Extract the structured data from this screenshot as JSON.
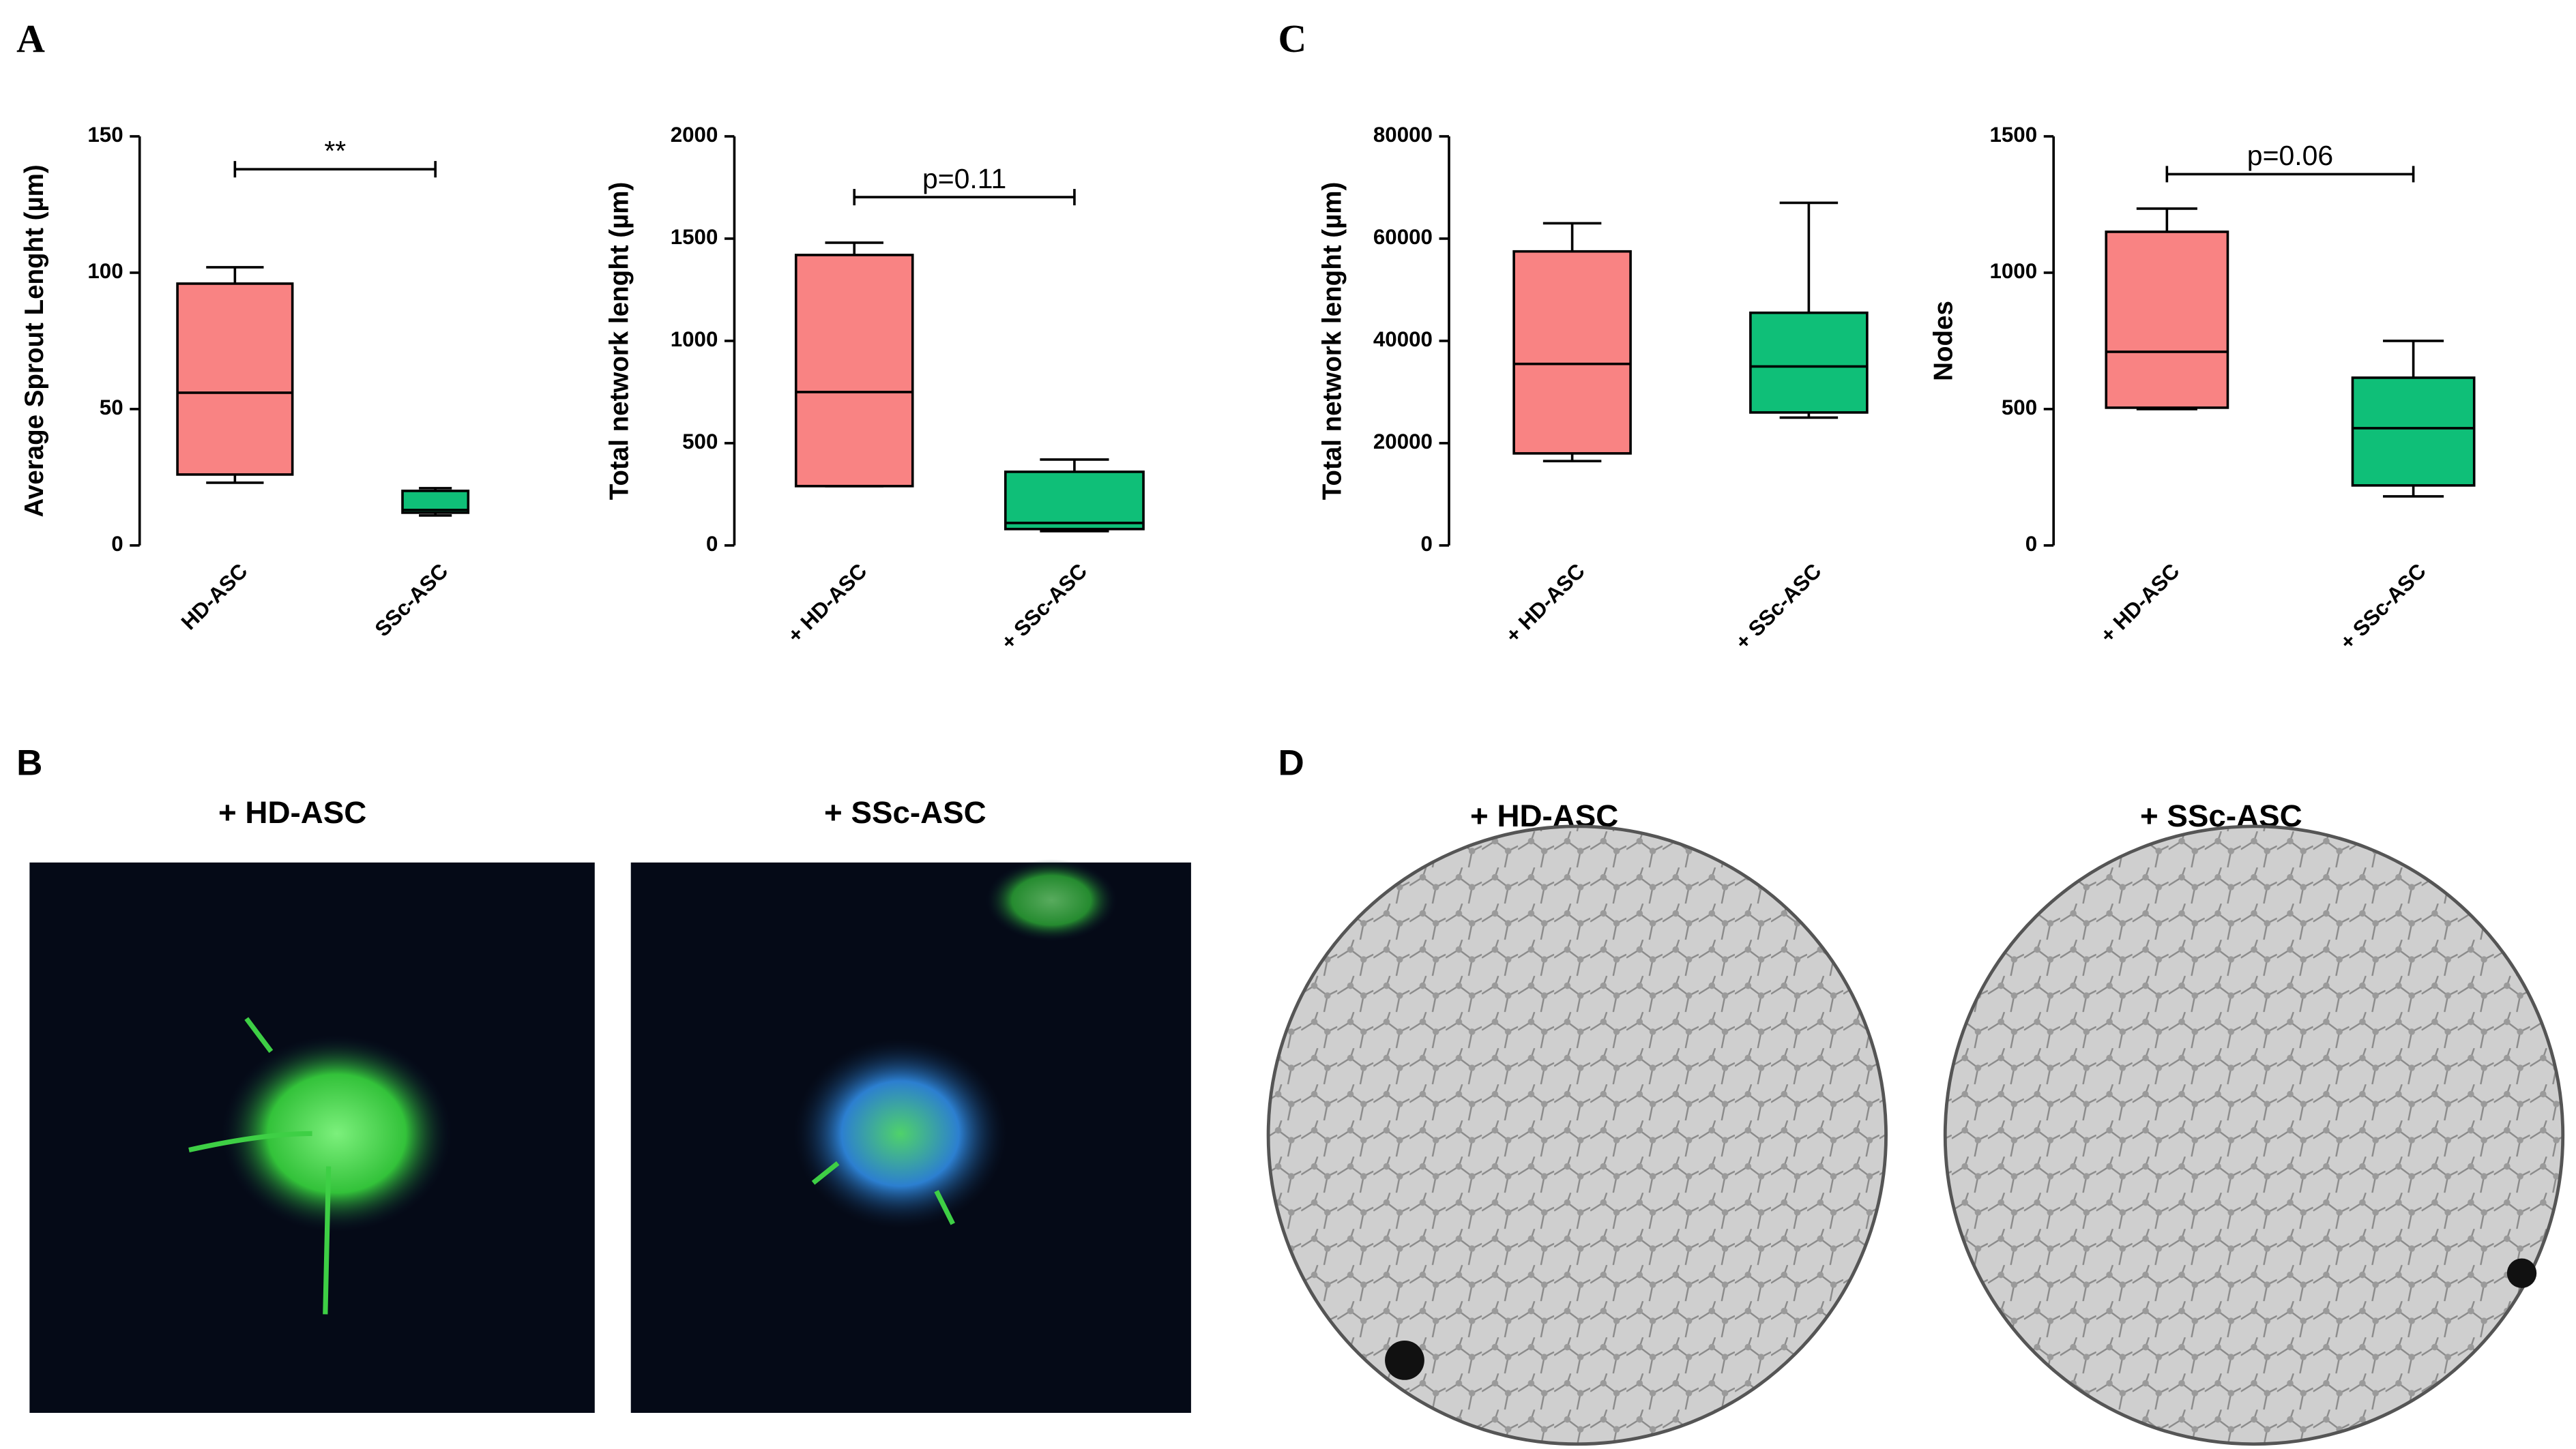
{
  "chart_data": [
    {
      "type": "box",
      "y_label": "Average Sprout Lenght (µm)",
      "categories": [
        "HD-ASC",
        "SSc-ASC"
      ],
      "boxes": [
        {
          "min": 23,
          "q1": 26,
          "median": 56,
          "q3": 96,
          "max": 102,
          "color": "#f98383"
        },
        {
          "min": 11,
          "q1": 12,
          "median": 13,
          "q3": 20,
          "max": 21,
          "color": "#0fbf78"
        }
      ],
      "ylim": [
        0,
        150
      ],
      "yticks": [
        0,
        50,
        100,
        150
      ],
      "annotation": "**"
    },
    {
      "type": "box",
      "y_label": "Total network lenght (µm)",
      "categories": [
        "+ HD-ASC",
        "+ SSc-ASC"
      ],
      "boxes": [
        {
          "min": 290,
          "q1": 290,
          "median": 750,
          "q3": 1420,
          "max": 1480,
          "color": "#f98383"
        },
        {
          "min": 70,
          "q1": 80,
          "median": 110,
          "q3": 360,
          "max": 420,
          "color": "#0fbf78"
        }
      ],
      "ylim": [
        0,
        2000
      ],
      "yticks": [
        0,
        500,
        1000,
        1500,
        2000
      ],
      "annotation": "p=0.11"
    },
    {
      "type": "box",
      "y_label": "Total network lenght (µm)",
      "categories": [
        "+ HD-ASC",
        "+ SSc-ASC"
      ],
      "boxes": [
        {
          "min": 16500,
          "q1": 18000,
          "median": 35500,
          "q3": 57500,
          "max": 63000,
          "color": "#f98383"
        },
        {
          "min": 25000,
          "q1": 26000,
          "median": 35000,
          "q3": 45500,
          "max": 67000,
          "color": "#0fbf78"
        }
      ],
      "ylim": [
        0,
        80000
      ],
      "yticks": [
        0,
        20000,
        40000,
        60000,
        80000
      ]
    },
    {
      "type": "box",
      "y_label": "Nodes",
      "categories": [
        "+ HD-ASC",
        "+ SSc-ASC"
      ],
      "boxes": [
        {
          "min": 500,
          "q1": 505,
          "median": 710,
          "q3": 1150,
          "max": 1235,
          "color": "#f98383"
        },
        {
          "min": 180,
          "q1": 220,
          "median": 430,
          "q3": 615,
          "max": 750,
          "color": "#0fbf78"
        }
      ],
      "ylim": [
        0,
        1500
      ],
      "yticks": [
        0,
        500,
        1000,
        1500
      ],
      "annotation": "p=0.06"
    }
  ],
  "panel_labels": [
    "A",
    "B",
    "C",
    "D"
  ],
  "images": {
    "B": [
      "+ HD-ASC",
      "+ SSc-ASC"
    ],
    "D": [
      "+ HD-ASC",
      "+ SSc-ASC"
    ]
  }
}
